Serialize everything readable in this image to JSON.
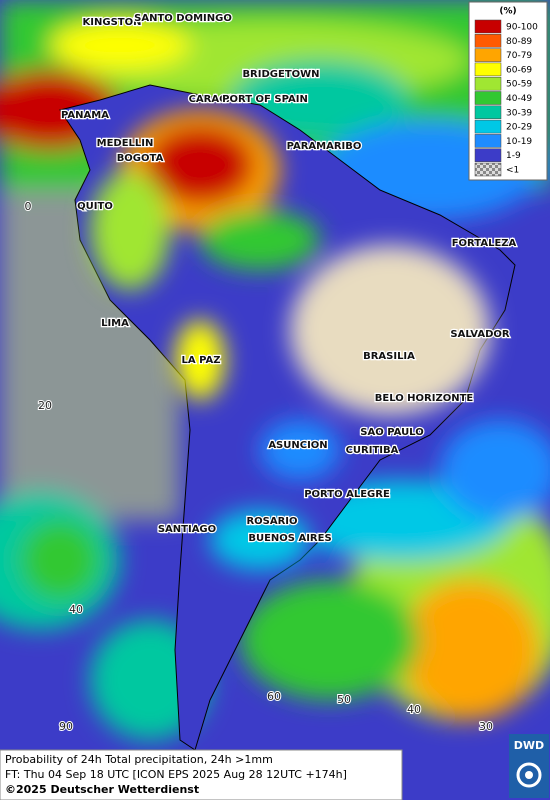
{
  "legend": {
    "title": "(%)",
    "items": [
      {
        "label": "90-100",
        "color": "#c80000"
      },
      {
        "label": "80-89",
        "color": "#ff5a00"
      },
      {
        "label": "70-79",
        "color": "#ffa500"
      },
      {
        "label": "60-69",
        "color": "#ffff00"
      },
      {
        "label": "50-59",
        "color": "#a0e632"
      },
      {
        "label": "40-49",
        "color": "#32c832"
      },
      {
        "label": "30-39",
        "color": "#00c8a0"
      },
      {
        "label": "20-29",
        "color": "#00c8e6"
      },
      {
        "label": "10-19",
        "color": "#1e8cff"
      },
      {
        "label": "1-9",
        "color": "#3c3cc8"
      },
      {
        "label": "<1",
        "color": "#aaaaaa"
      }
    ]
  },
  "cities": [
    "KINGSTON",
    "SANTO DOMINGO",
    "BRIDGETOWN",
    "CARACAS",
    "PORT OF SPAIN",
    "PANAMA",
    "MEDELLIN",
    "BOGOTA",
    "PARAMARIBO",
    "QUITO",
    "FORTALEZA",
    "LIMA",
    "SALVADOR",
    "LA PAZ",
    "BRASILIA",
    "BELO HORIZONTE",
    "SAO PAULO",
    "ASUNCION",
    "CURITIBA",
    "PORTO ALEGRE",
    "ROSARIO",
    "SANTIAGO",
    "BUENOS AIRES"
  ],
  "grid_labels": [
    "0",
    "20",
    "40",
    "90",
    "60",
    "50",
    "40",
    "30"
  ],
  "footer": {
    "line1": "Probability of 24h Total precipitation, 24h >1mm",
    "line2": "FT: Thu 04 Sep 18 UTC [ICON EPS 2025 Aug 28 12UTC +174h]",
    "line3": "©2025 Deutscher Wetterdienst"
  },
  "logo": "DWD"
}
